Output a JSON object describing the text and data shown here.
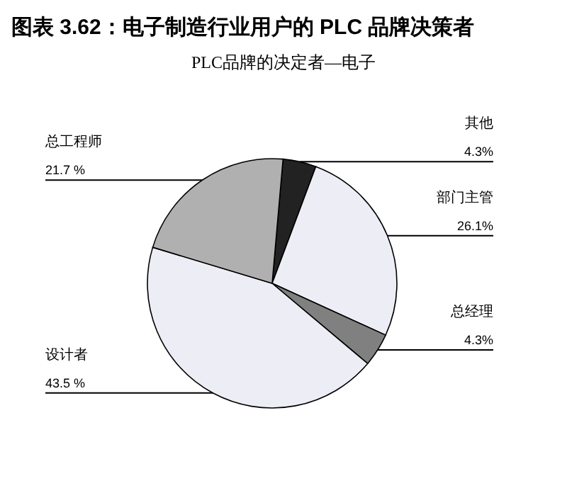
{
  "chart_data": {
    "type": "pie",
    "title": "图表 3.62：电子制造行业用户的 PLC 品牌决策者",
    "subtitle": "PLC品牌的决定者—电子",
    "categories": [
      "其他",
      "部门主管",
      "总经理",
      "设计者",
      "总工程师"
    ],
    "values": [
      4.3,
      26.1,
      4.3,
      43.5,
      21.7
    ],
    "value_labels": [
      "4.3%",
      "26.1%",
      "4.3%",
      "43.5 %",
      "21.7 %"
    ],
    "colors": [
      "#222222",
      "#ededf5",
      "#808080",
      "#ededf5",
      "#b0b0b0"
    ]
  }
}
